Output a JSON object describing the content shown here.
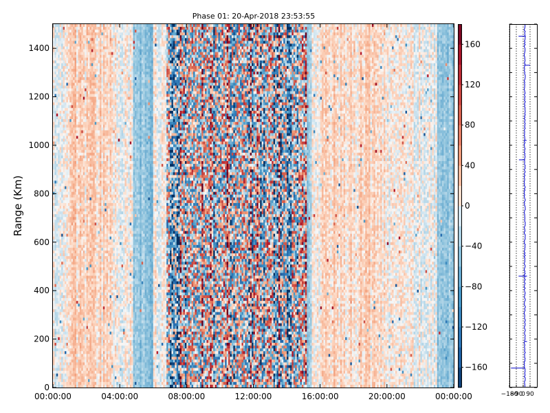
{
  "chart_data": [
    {
      "type": "heatmap",
      "title": "Phase 01: 20-Apr-2018 23:53:55",
      "xlabel": "",
      "ylabel": "Range (Km)",
      "xlim": [
        "00:00:00",
        "24:00:00"
      ],
      "ylim": [
        0,
        1500
      ],
      "x_ticks": [
        "00:00:00",
        "04:00:00",
        "08:00:00",
        "12:00:00",
        "16:00:00",
        "20:00:00",
        "00:00:00"
      ],
      "y_ticks": [
        0,
        200,
        400,
        600,
        800,
        1000,
        1200,
        1400
      ],
      "colorbar": {
        "range": [
          -180,
          180
        ],
        "colormap": "RdBu_r",
        "ticks": [
          -160,
          -120,
          -80,
          -40,
          0,
          40,
          80,
          120,
          160
        ],
        "tick_labels": [
          "−160",
          "−120",
          "−80",
          "−40",
          "0",
          "40",
          "80",
          "120",
          "160"
        ]
      },
      "pattern": {
        "high_variability_hours": [
          6.8,
          15.2
        ],
        "blue_bias_hours": [
          [
            4.8,
            6.0
          ],
          [
            12.8,
            15.5
          ],
          [
            23.0,
            24.0
          ]
        ],
        "red_bias_hours": [
          [
            1.0,
            3.5
          ],
          [
            16.0,
            20.0
          ]
        ]
      }
    },
    {
      "type": "line",
      "title": "",
      "xlabel": "",
      "ylabel": "",
      "xlim": [
        -180,
        180
      ],
      "ylim": [
        0,
        1500
      ],
      "x_tick_labels": [
        "−180",
        "−90",
        "0",
        "90"
      ],
      "x_tick_values": [
        -180,
        -90,
        0,
        90
      ],
      "y_tick_values": [
        0,
        100,
        200,
        300,
        400,
        500,
        600,
        700,
        800,
        900,
        1000,
        1100,
        1200,
        1300,
        1400,
        1500
      ],
      "grid": true,
      "color": "#0000cc",
      "profile_center": 20,
      "spikes": [
        {
          "y": 78,
          "x": -160
        },
        {
          "y": 192,
          "x": 50
        },
        {
          "y": 460,
          "x": -60
        },
        {
          "y": 460,
          "x": 50
        },
        {
          "y": 940,
          "x": -55
        },
        {
          "y": 1020,
          "x": 45
        },
        {
          "y": 1330,
          "x": 90
        },
        {
          "y": 1450,
          "x": -60
        }
      ]
    }
  ]
}
